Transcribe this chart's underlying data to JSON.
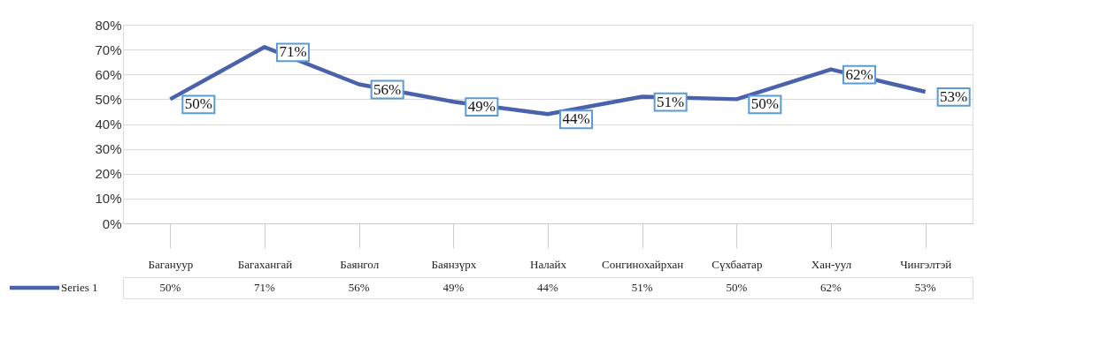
{
  "chart_data": {
    "type": "line",
    "categories": [
      "Багануур",
      "Багахангай",
      "Баянгол",
      "Баянзүрх",
      "Налайх",
      "Сонгинохайрхан",
      "Сүхбаатар",
      "Хан-уул",
      "Чингэлтэй"
    ],
    "series": [
      {
        "name": "Series 1",
        "color": "#4a62ac",
        "values": [
          50,
          71,
          56,
          49,
          44,
          51,
          50,
          62,
          53
        ],
        "value_labels": [
          "50%",
          "71%",
          "56%",
          "49%",
          "44%",
          "51%",
          "50%",
          "62%",
          "53%"
        ]
      }
    ],
    "ylim": [
      0,
      80
    ],
    "yticks": [
      {
        "value": 0,
        "label": "0%"
      },
      {
        "value": 10,
        "label": "10%"
      },
      {
        "value": 20,
        "label": "20%"
      },
      {
        "value": 30,
        "label": "30%"
      },
      {
        "value": 40,
        "label": "40%"
      },
      {
        "value": 50,
        "label": "50%"
      },
      {
        "value": 60,
        "label": "60%"
      },
      {
        "value": 70,
        "label": "70%"
      },
      {
        "value": 80,
        "label": "80%"
      }
    ],
    "grid": "y",
    "legend": "bottom left",
    "marker": "none",
    "line_style": "solid"
  }
}
